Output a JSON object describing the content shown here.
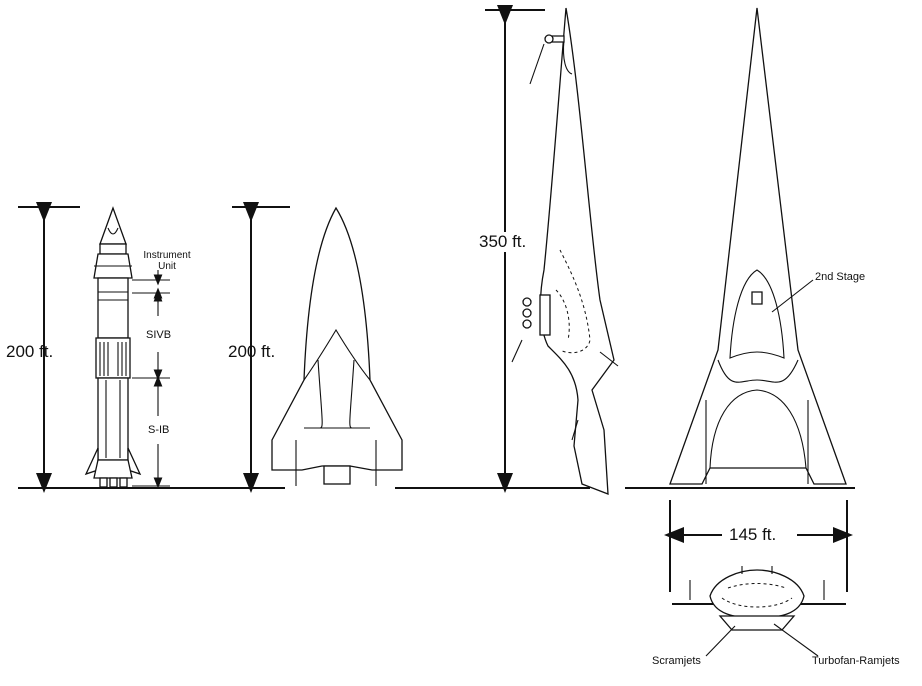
{
  "labels": {
    "height_a": "200 ft.",
    "height_b": "200 ft.",
    "height_c": "350 ft.",
    "span": "145 ft.",
    "instrument_unit": "Instrument\nUnit",
    "sivb": "SIVB",
    "sib": "S-IB",
    "second_stage": "2nd Stage",
    "scramjets": "Scramjets",
    "turbofan": "Turbofan-Ramjets"
  },
  "colors": {
    "ink": "#111111",
    "paper": "#ffffff"
  }
}
